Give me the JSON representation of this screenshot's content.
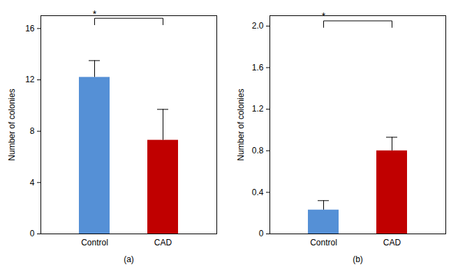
{
  "chart_data": [
    {
      "type": "bar",
      "xlabel": "(a)",
      "ylabel": "Number of colonies",
      "categories": [
        "Control",
        "CAD"
      ],
      "values": [
        12.2,
        7.3
      ],
      "errors": [
        1.3,
        2.4
      ],
      "colors": [
        "#5590d6",
        "#c00000"
      ],
      "ylim": [
        0,
        17
      ],
      "yticks": [
        0,
        4,
        8,
        12,
        16
      ],
      "annotations": [
        {
          "text": "*",
          "x": [
            "Control",
            "CAD"
          ],
          "y": 16.8
        }
      ]
    },
    {
      "type": "bar",
      "xlabel": "(b)",
      "ylabel": "Number of colonies",
      "categories": [
        "Control",
        "CAD"
      ],
      "values": [
        0.23,
        0.8
      ],
      "errors": [
        0.09,
        0.13
      ],
      "colors": [
        "#5590d6",
        "#c00000"
      ],
      "ylim": [
        0,
        2.1
      ],
      "yticks": [
        0,
        0.4,
        0.8,
        1.2,
        1.6,
        {
          "value": 2,
          "label": "2.0"
        }
      ],
      "annotations": [
        {
          "text": "*",
          "x": [
            "Control",
            "CAD"
          ],
          "y": 2.05
        }
      ]
    }
  ]
}
